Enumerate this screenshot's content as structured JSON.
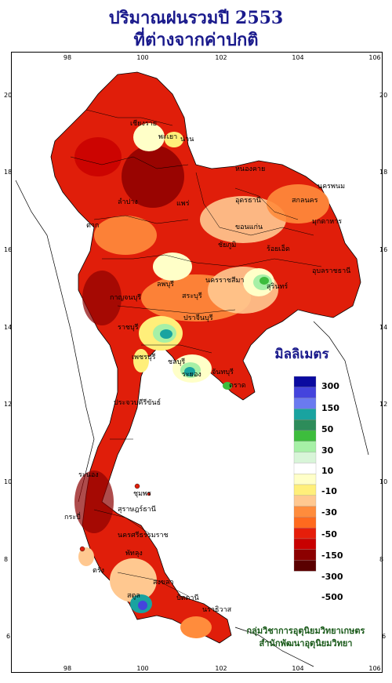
{
  "title_line1": "ปริมาณฝนรวมปี 2553",
  "title_line2": "ที่ต่างจากค่าปกติ",
  "legend": {
    "unit": "มิลลิเมตร",
    "labels": [
      "300",
      "150",
      "50",
      "30",
      "10",
      "-10",
      "-30",
      "-50",
      "-150",
      "-300",
      "-500"
    ],
    "colors": [
      "#0a0aa0",
      "#4444dd",
      "#6a7af0",
      "#19a3a0",
      "#2d8c5a",
      "#3dbd3d",
      "#a6f0a6",
      "#d8f5d8",
      "#ffffff",
      "#ffffc8",
      "#ffef7a",
      "#ffc890",
      "#ff8c3c",
      "#ff6a1e",
      "#e61e0a",
      "#c80000",
      "#8c0000",
      "#5a0000"
    ]
  },
  "axes": {
    "lon_ticks": [
      "98",
      "100",
      "102",
      "104",
      "106"
    ],
    "lat_ticks": [
      "20",
      "18",
      "16",
      "14",
      "12",
      "10",
      "8",
      "6"
    ]
  },
  "credit_line1": "กลุ่มวิชาการอุตุนิยมวิทยาเกษตร",
  "credit_line2": "สำนักพัฒนาอุตุนิยมวิทยา",
  "place_labels": [
    "เชียงราย",
    "พะเยา",
    "น่าน",
    "หนองคาย",
    "ลำปาง",
    "แพร่",
    "อุดรธานี",
    "นครพนม",
    "สกลนคร",
    "ขอนแก่น",
    "มุกดาหาร",
    "ร้อยเอ็ด",
    "นครราชสีมา",
    "สุรินทร์",
    "อุบลราชธานี",
    "ชัยภูมิ",
    "ลพบุรี",
    "สระบุรี",
    "กาญจนบุรี",
    "ราชบุรี",
    "ปราจีนบุรี",
    "ชลบุรี",
    "ระยอง",
    "จันทบุรี",
    "ตราด",
    "เพชรบุรี",
    "ประจวบคีรีขันธ์",
    "ชุมพร",
    "ระนอง",
    "สุราษฎร์ธานี",
    "นครศรีธรรมราช",
    "กระบี่",
    "ตรัง",
    "พัทลุง",
    "สงขลา",
    "สตูล",
    "ปัตตานี",
    "นราธิวาส",
    "ตาก"
  ]
}
